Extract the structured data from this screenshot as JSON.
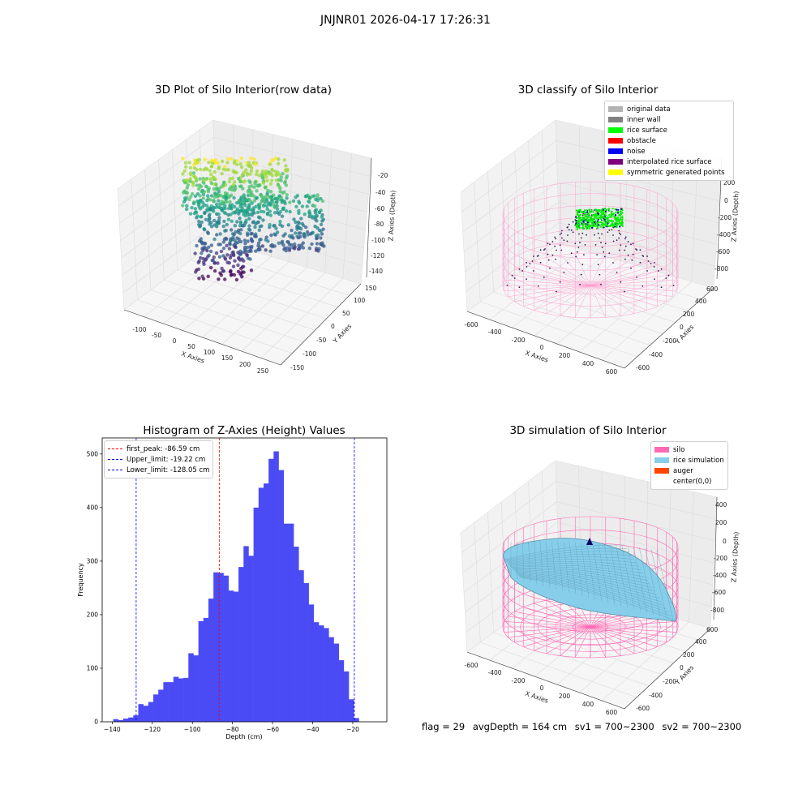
{
  "suptitle": "JNJNR01 2026-04-17 17:26:31",
  "panels": {
    "raw": {
      "title": "3D Plot of Silo Interior(row data)",
      "xlabel": "X Axies",
      "ylabel": "Y Axies",
      "zlabel": "Z Axies (Depth)",
      "xticks": [
        "-100",
        "-50",
        "0",
        "50",
        "100",
        "150",
        "200",
        "250"
      ],
      "yticks": [
        "-150",
        "-100",
        "-50",
        "0",
        "50",
        "100",
        "150"
      ],
      "zticks": [
        "-20",
        "-40",
        "-60",
        "-80",
        "-100",
        "-120",
        "-140"
      ]
    },
    "classify": {
      "title": "3D classify of Silo Interior",
      "xlabel": "X Axies",
      "ylabel": "Y Axies",
      "zlabel": "Z Axies (Depth)",
      "xticks": [
        "-600",
        "-400",
        "-200",
        "0",
        "200",
        "400",
        "600"
      ],
      "yticks": [
        "-600",
        "-400",
        "-200",
        "0",
        "200",
        "400",
        "600"
      ],
      "zticks": [
        "200",
        "0",
        "-200",
        "-400",
        "-600",
        "-800"
      ],
      "legend": [
        {
          "label": "original data",
          "color": "#b3b3b3"
        },
        {
          "label": "inner wall",
          "color": "#808080"
        },
        {
          "label": "rice surface",
          "color": "#00ff00"
        },
        {
          "label": "obstacle",
          "color": "#ff0000"
        },
        {
          "label": "noise",
          "color": "#0000ff"
        },
        {
          "label": "interpolated rice surface",
          "color": "#800080"
        },
        {
          "label": "symmetric generated points",
          "color": "#ffff00"
        }
      ]
    },
    "simulation": {
      "title": "3D simulation of Silo Interior",
      "xlabel": "X Axies",
      "ylabel": "Y Axies",
      "zlabel": "Z Axies (Depth)",
      "xticks": [
        "-600",
        "-400",
        "-200",
        "0",
        "200",
        "400",
        "600"
      ],
      "yticks": [
        "-600",
        "-400",
        "-200",
        "0",
        "200",
        "400",
        "600"
      ],
      "zticks": [
        "400",
        "200",
        "0",
        "-200",
        "-400",
        "-600",
        "-800"
      ],
      "legend": [
        {
          "label": "silo",
          "color": "#ff69b4"
        },
        {
          "label": "rice simulation",
          "color": "#87ceeb"
        },
        {
          "label": "auger",
          "color": "#ff4500"
        },
        {
          "label": "center(0,0)",
          "color": ""
        }
      ]
    }
  },
  "chart_data": {
    "type": "bar",
    "title": "Histogram of Z-Axies (Height) Values",
    "xlabel": "Depth (cm)",
    "ylabel": "Frequency",
    "xlim": [
      -145,
      -3
    ],
    "ylim": [
      0,
      530
    ],
    "xticks": [
      -140,
      -120,
      -100,
      -80,
      -60,
      -40,
      -20
    ],
    "yticks": [
      0,
      100,
      200,
      300,
      400,
      500
    ],
    "bin_start": -139.5,
    "bin_width": 2.5,
    "values": [
      5,
      3,
      6,
      8,
      12,
      33,
      30,
      37,
      51,
      60,
      74,
      74,
      84,
      81,
      82,
      128,
      124,
      188,
      194,
      230,
      279,
      278,
      273,
      245,
      243,
      289,
      328,
      310,
      400,
      437,
      445,
      491,
      505,
      470,
      370,
      370,
      327,
      283,
      259,
      219,
      186,
      180,
      175,
      158,
      146,
      115,
      94,
      42,
      7
    ],
    "bar_color": "#4b4bf5",
    "lines": [
      {
        "label": "first_peak: -86.59 cm",
        "value": -86.59,
        "color": "#ff0000"
      },
      {
        "label": "Upper_limit: -19.22 cm",
        "value": -19.22,
        "color": "#0000ff"
      },
      {
        "label": "Lower_limit: -128.05 cm",
        "value": -128.05,
        "color": "#0000ff"
      }
    ]
  },
  "footer": {
    "flag": "flag = 29",
    "avg_depth": "avgDepth = 164 cm",
    "sv1": "sv1 = 700~2300",
    "sv2": "sv2 = 700~2300"
  }
}
